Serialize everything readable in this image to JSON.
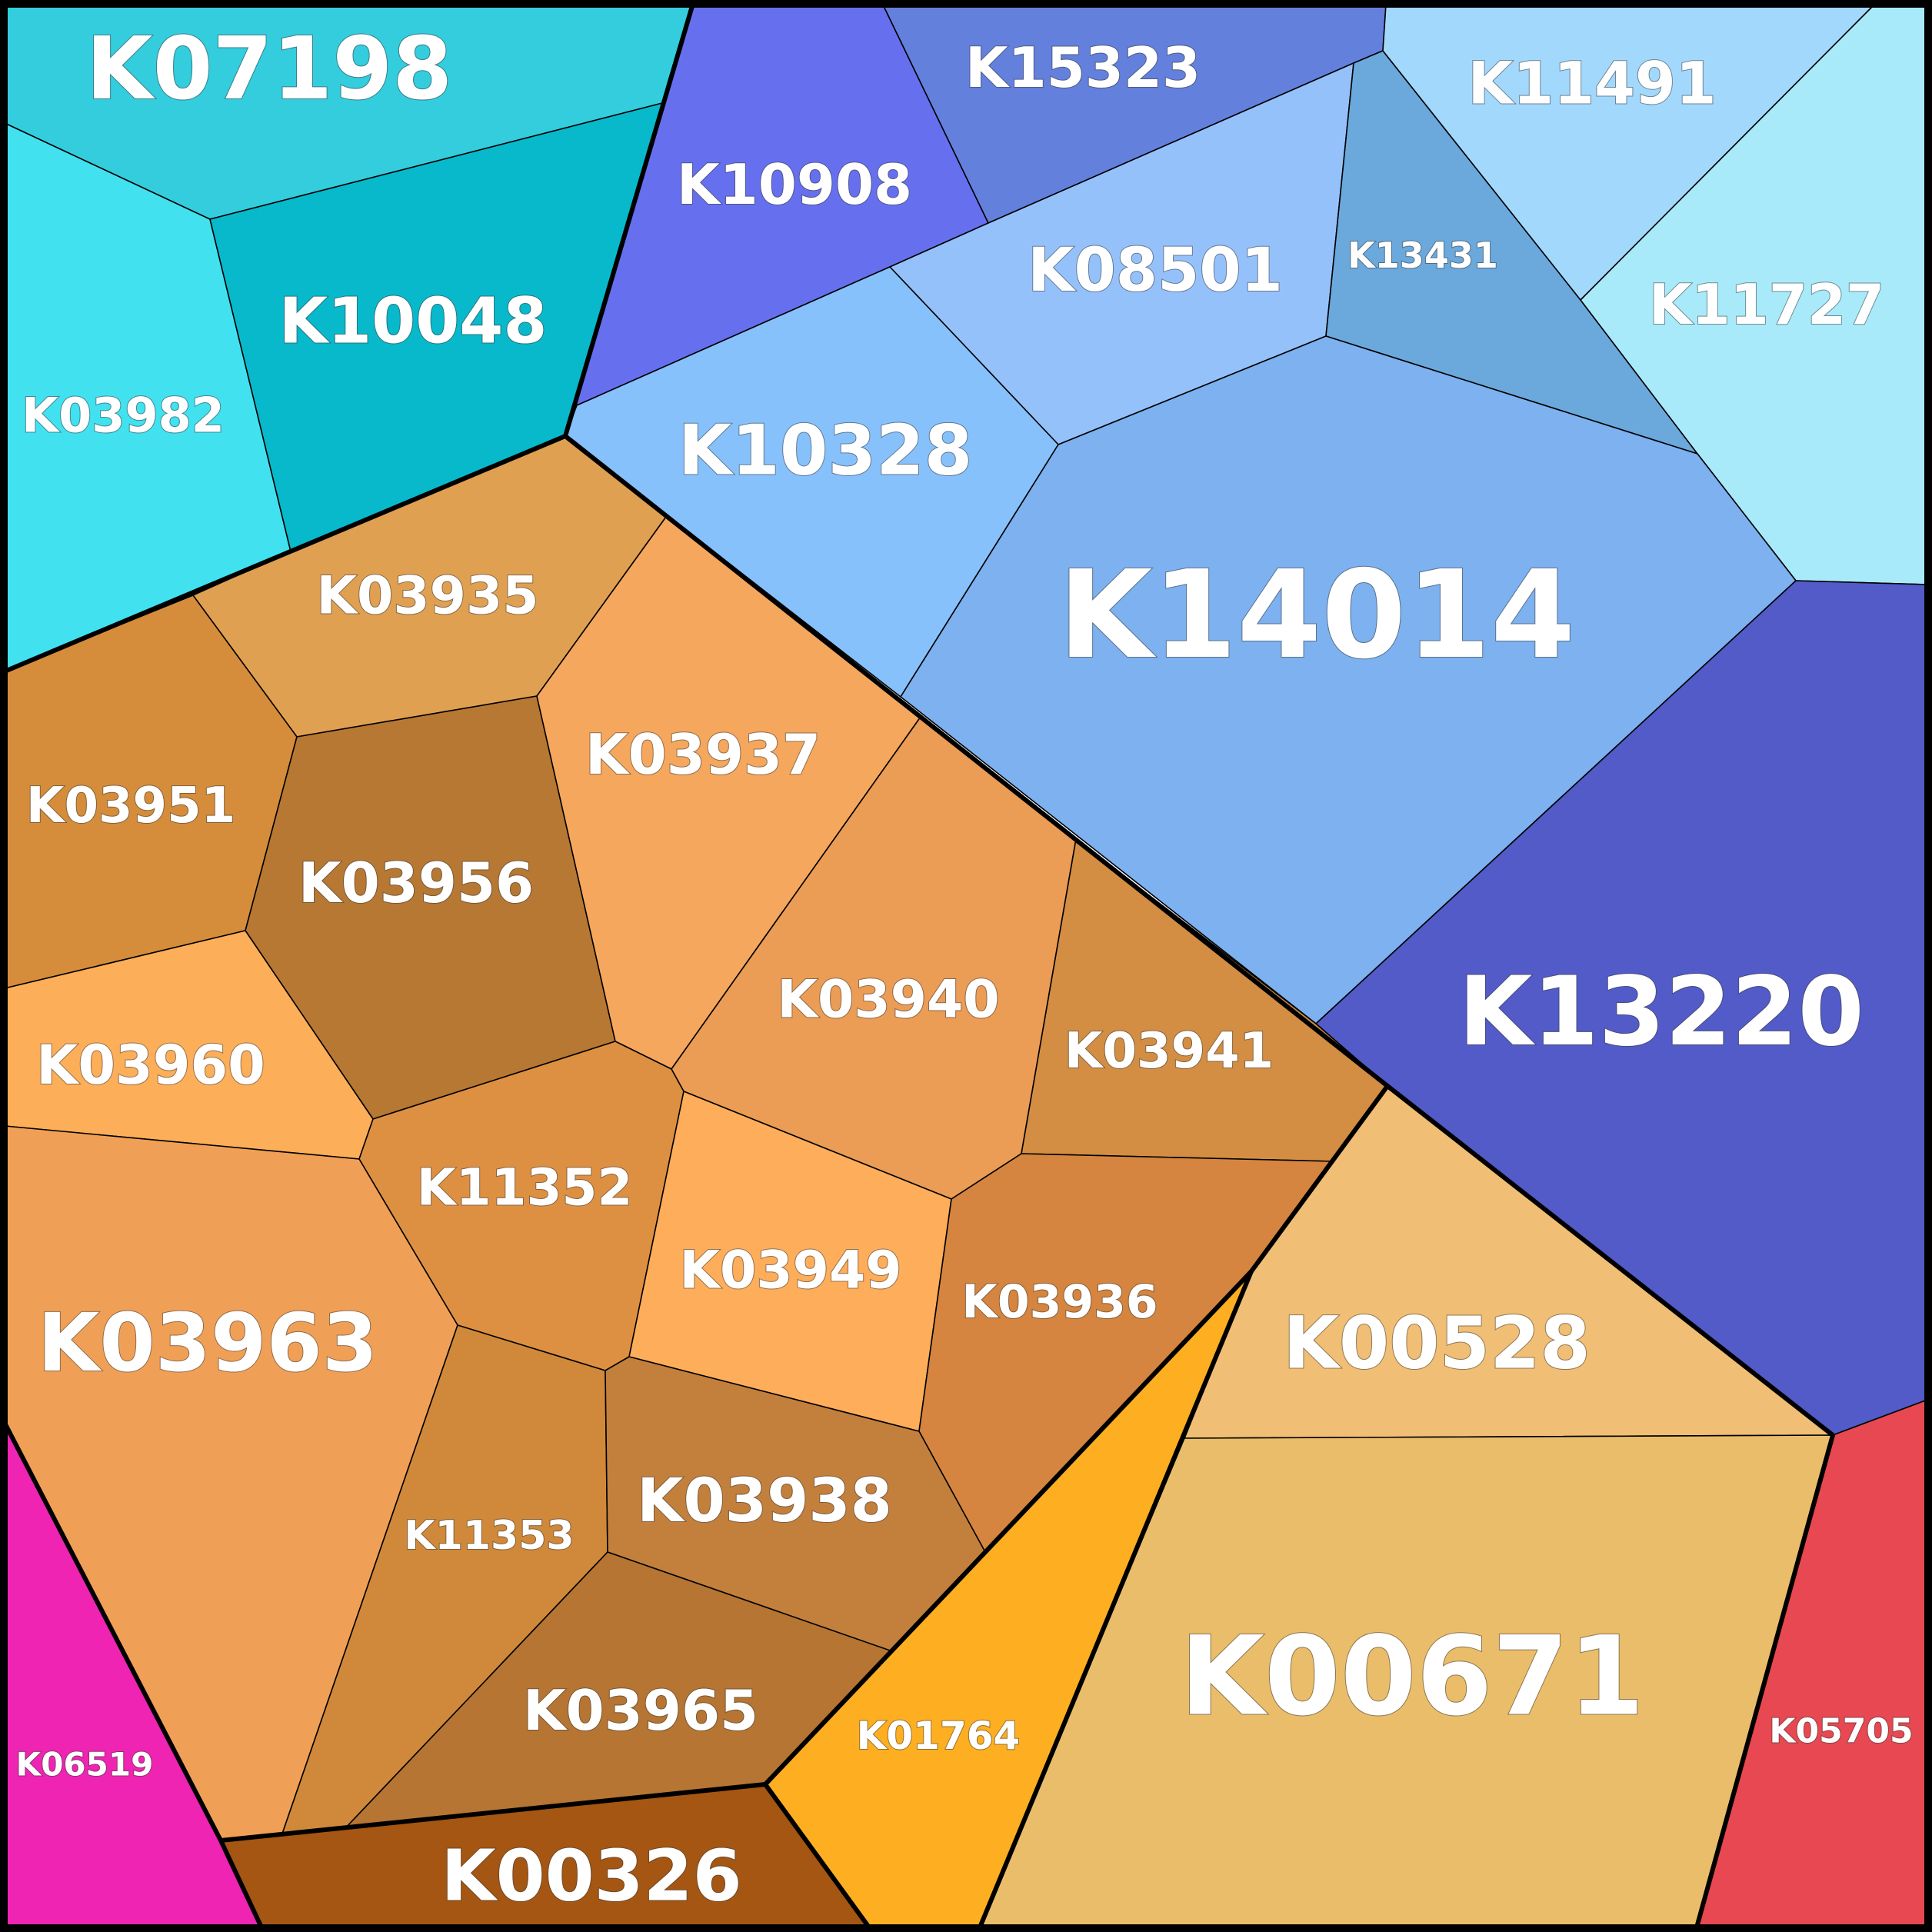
{
  "title": "",
  "cells": [
    {
      "id": "K07198",
      "color": "#33cddd"
    },
    {
      "id": "K03982",
      "color": "#42e1f0"
    },
    {
      "id": "K10048",
      "color": "#08b9cb"
    },
    {
      "id": "K10908",
      "color": "#6670ef"
    },
    {
      "id": "K15323",
      "color": "#6480dd"
    },
    {
      "id": "K08501",
      "color": "#95c1fb"
    },
    {
      "id": "K13431",
      "color": "#6ba8dc"
    },
    {
      "id": "K11491",
      "color": "#a3d8fd"
    },
    {
      "id": "K11727",
      "color": "#a8eafa"
    },
    {
      "id": "K10328",
      "color": "#87c1fb"
    },
    {
      "id": "K14014",
      "color": "#7db1ef"
    },
    {
      "id": "K13220",
      "color": "#525bc8"
    },
    {
      "id": "K03935",
      "color": "#e0a052"
    },
    {
      "id": "K03951",
      "color": "#d58d3b"
    },
    {
      "id": "K03956",
      "color": "#b77833"
    },
    {
      "id": "K03937",
      "color": "#f5a75d"
    },
    {
      "id": "K03960",
      "color": "#fdae59"
    },
    {
      "id": "K03940",
      "color": "#eb9c55"
    },
    {
      "id": "K03941",
      "color": "#d38e43"
    },
    {
      "id": "K11352",
      "color": "#de9042"
    },
    {
      "id": "K03949",
      "color": "#fead5b"
    },
    {
      "id": "K03936",
      "color": "#d5853f"
    },
    {
      "id": "K03963",
      "color": "#f0a056"
    },
    {
      "id": "K11353",
      "color": "#d0893a"
    },
    {
      "id": "K03938",
      "color": "#c3803d"
    },
    {
      "id": "K03965",
      "color": "#b67532"
    },
    {
      "id": "K00326",
      "color": "#a45612"
    },
    {
      "id": "K00528",
      "color": "#f0be74"
    },
    {
      "id": "K01764",
      "color": "#fdaf21"
    },
    {
      "id": "K00671",
      "color": "#eabd6b"
    },
    {
      "id": "K05705",
      "color": "#e84851"
    },
    {
      "id": "K06519",
      "color": "#ef24b2"
    }
  ]
}
